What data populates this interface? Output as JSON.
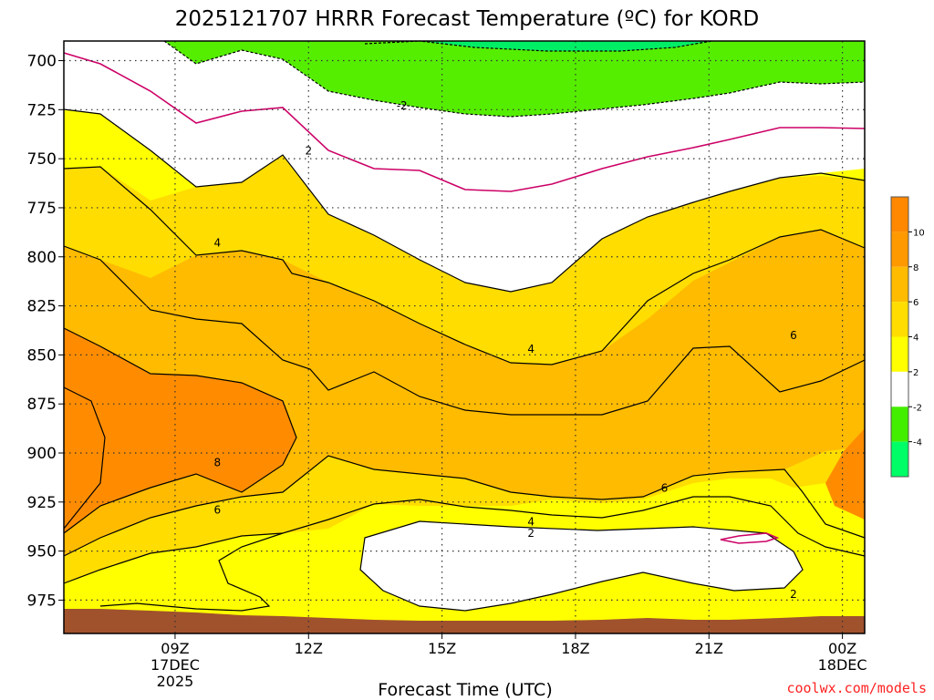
{
  "chart_data": {
    "type": "contour",
    "title": "2025121707 HRRR Forecast Temperature (ºC) for KORD",
    "xlabel": "Forecast Time (UTC)",
    "ylabel": "",
    "credit": "coolwx.com/models",
    "x_range_hours": [
      6.5,
      24.5
    ],
    "y_range_hpa": [
      690,
      992
    ],
    "y_ticks": [
      "700",
      "725",
      "750",
      "775",
      "800",
      "825",
      "850",
      "875",
      "900",
      "925",
      "950",
      "975"
    ],
    "x_ticks": [
      {
        "hour": 9,
        "lines": [
          "09Z",
          "17DEC",
          "2025"
        ]
      },
      {
        "hour": 12,
        "lines": [
          "12Z"
        ]
      },
      {
        "hour": 15,
        "lines": [
          "15Z"
        ]
      },
      {
        "hour": 18,
        "lines": [
          "18Z"
        ]
      },
      {
        "hour": 21,
        "lines": [
          "21Z"
        ]
      },
      {
        "hour": 24,
        "lines": [
          "00Z",
          "18DEC"
        ]
      }
    ],
    "colorbar": {
      "levels": [
        -4,
        -2,
        2,
        4,
        6,
        8,
        10
      ],
      "labels": [
        "-4",
        "-2",
        "2",
        "4",
        "6",
        "8",
        "10"
      ],
      "colors": [
        "#00ff66",
        "#44ee00",
        "#ffffff",
        "#ffff00",
        "#ffdd00",
        "#ffbb00",
        "#ff9900",
        "#ff8800"
      ]
    },
    "fill_colors": {
      "green_dark": "#00ee66",
      "green": "#55ee00",
      "white": "#ffffff",
      "yellow": "#ffff00",
      "light_orange": "#ffdd00",
      "orange": "#ffbb00",
      "dark_orange": "#ff8c00",
      "ground": "#a0522d",
      "zero_line": "#cc0066"
    },
    "contour_labels": [
      {
        "text": "-2",
        "hour": 14.1,
        "hpa": 723
      },
      {
        "text": "2",
        "hour": 12.0,
        "hpa": 746
      },
      {
        "text": "4",
        "hour": 9.95,
        "hpa": 793
      },
      {
        "text": "4",
        "hour": 17.0,
        "hpa": 847
      },
      {
        "text": "6",
        "hour": 22.9,
        "hpa": 840
      },
      {
        "text": "8",
        "hour": 9.95,
        "hpa": 905
      },
      {
        "text": "6",
        "hour": 9.95,
        "hpa": 929
      },
      {
        "text": "4",
        "hour": 17.0,
        "hpa": 935
      },
      {
        "text": "2",
        "hour": 17.0,
        "hpa": 941
      },
      {
        "text": "6",
        "hour": 20.0,
        "hpa": 918
      },
      {
        "text": "2",
        "hour": 22.9,
        "hpa": 972
      }
    ]
  }
}
